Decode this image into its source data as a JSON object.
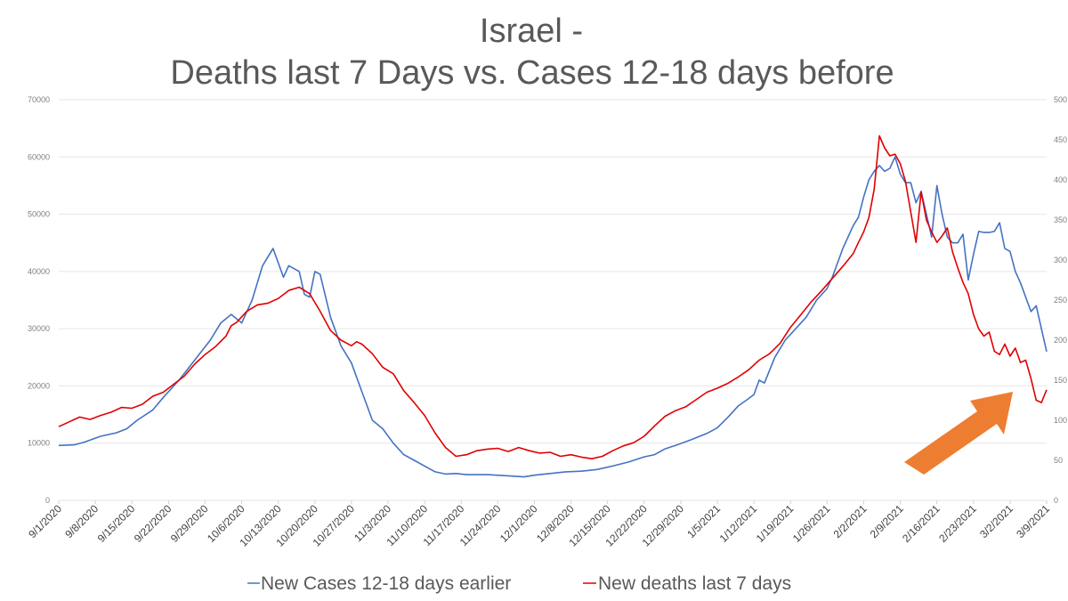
{
  "chart_data": {
    "type": "line",
    "title_line1": "Israel -",
    "title_line2": "Deaths last 7 Days vs. Cases 12-18 days before",
    "left_axis": {
      "min": 0,
      "max": 70000,
      "ticks": [
        "0",
        "10000",
        "20000",
        "30000",
        "40000",
        "50000",
        "60000",
        "70000"
      ]
    },
    "right_axis": {
      "min": 0,
      "max": 500,
      "ticks": [
        "0",
        "50",
        "100",
        "150",
        "200",
        "250",
        "300",
        "350",
        "400",
        "450",
        "500"
      ]
    },
    "x_labels": [
      "9/1/2020",
      "9/8/2020",
      "9/15/2020",
      "9/22/2020",
      "9/29/2020",
      "10/6/2020",
      "10/13/2020",
      "10/20/2020",
      "10/27/2020",
      "11/3/2020",
      "11/10/2020",
      "11/17/2020",
      "11/24/2020",
      "12/1/2020",
      "12/8/2020",
      "12/15/2020",
      "12/22/2020",
      "12/29/2020",
      "1/5/2021",
      "1/12/2021",
      "1/19/2021",
      "1/26/2021",
      "2/2/2021",
      "2/9/2021",
      "2/16/2021",
      "2/23/2021",
      "3/2/2021",
      "3/9/2021"
    ],
    "x_day_range": [
      0,
      189
    ],
    "grid": true,
    "legend_position": "bottom",
    "series": [
      {
        "name": "New Cases 12-18 days earlier",
        "axis": "left",
        "color": "#4472c4",
        "points": [
          [
            0,
            9600
          ],
          [
            3,
            9700
          ],
          [
            5,
            10200
          ],
          [
            8,
            11200
          ],
          [
            11,
            11800
          ],
          [
            13,
            12500
          ],
          [
            15,
            14000
          ],
          [
            18,
            15800
          ],
          [
            20,
            18000
          ],
          [
            23,
            21000
          ],
          [
            26,
            24500
          ],
          [
            29,
            28000
          ],
          [
            31,
            31000
          ],
          [
            33,
            32500
          ],
          [
            35,
            31000
          ],
          [
            37,
            35000
          ],
          [
            39,
            41000
          ],
          [
            41,
            44000
          ],
          [
            43,
            39000
          ],
          [
            44,
            41000
          ],
          [
            46,
            40000
          ],
          [
            47,
            36000
          ],
          [
            48,
            35500
          ],
          [
            49,
            40000
          ],
          [
            50,
            39500
          ],
          [
            52,
            32000
          ],
          [
            54,
            27000
          ],
          [
            56,
            24000
          ],
          [
            58,
            19000
          ],
          [
            60,
            14000
          ],
          [
            62,
            12500
          ],
          [
            64,
            10000
          ],
          [
            66,
            8000
          ],
          [
            68,
            7000
          ],
          [
            70,
            6000
          ],
          [
            72,
            5000
          ],
          [
            74,
            4600
          ],
          [
            76,
            4700
          ],
          [
            78,
            4500
          ],
          [
            82,
            4500
          ],
          [
            86,
            4300
          ],
          [
            89,
            4100
          ],
          [
            91,
            4400
          ],
          [
            94,
            4700
          ],
          [
            97,
            5000
          ],
          [
            100,
            5100
          ],
          [
            103,
            5400
          ],
          [
            106,
            6000
          ],
          [
            109,
            6700
          ],
          [
            112,
            7600
          ],
          [
            114,
            8000
          ],
          [
            116,
            9000
          ],
          [
            118,
            9600
          ],
          [
            121,
            10600
          ],
          [
            124,
            11700
          ],
          [
            126,
            12700
          ],
          [
            128,
            14500
          ],
          [
            130,
            16500
          ],
          [
            132,
            17800
          ],
          [
            133,
            18500
          ],
          [
            134,
            21000
          ],
          [
            135,
            20500
          ],
          [
            137,
            25000
          ],
          [
            139,
            28000
          ],
          [
            141,
            30000
          ],
          [
            143,
            32000
          ],
          [
            145,
            35000
          ],
          [
            147,
            37000
          ],
          [
            148,
            39000
          ],
          [
            150,
            44000
          ],
          [
            152,
            48000
          ],
          [
            153,
            49500
          ],
          [
            154,
            53000
          ],
          [
            155,
            56000
          ],
          [
            156,
            57500
          ],
          [
            157,
            58500
          ],
          [
            158,
            57500
          ],
          [
            159,
            58000
          ],
          [
            160,
            60000
          ],
          [
            161,
            57000
          ],
          [
            162,
            55500
          ],
          [
            163,
            55500
          ],
          [
            164,
            52000
          ],
          [
            165,
            54000
          ],
          [
            166,
            50000
          ],
          [
            167,
            46000
          ],
          [
            168,
            55000
          ],
          [
            169,
            50000
          ],
          [
            170,
            46000
          ],
          [
            171,
            45000
          ],
          [
            172,
            45000
          ],
          [
            173,
            46500
          ],
          [
            174,
            38500
          ],
          [
            175,
            43000
          ],
          [
            176,
            47000
          ],
          [
            177,
            46800
          ],
          [
            178,
            46800
          ],
          [
            179,
            47000
          ],
          [
            180,
            48500
          ],
          [
            181,
            44000
          ],
          [
            182,
            43500
          ],
          [
            183,
            40000
          ],
          [
            184,
            38000
          ],
          [
            186,
            33000
          ],
          [
            187,
            34000
          ],
          [
            188,
            30000
          ],
          [
            189,
            26000
          ]
        ]
      },
      {
        "name": "New deaths last 7 days",
        "axis": "right",
        "color": "#e00000",
        "points": [
          [
            0,
            92
          ],
          [
            2,
            98
          ],
          [
            4,
            104
          ],
          [
            6,
            101
          ],
          [
            8,
            106
          ],
          [
            10,
            110
          ],
          [
            12,
            116
          ],
          [
            14,
            115
          ],
          [
            16,
            120
          ],
          [
            18,
            130
          ],
          [
            20,
            135
          ],
          [
            22,
            145
          ],
          [
            24,
            155
          ],
          [
            26,
            170
          ],
          [
            28,
            182
          ],
          [
            30,
            192
          ],
          [
            32,
            205
          ],
          [
            33,
            218
          ],
          [
            34,
            222
          ],
          [
            36,
            236
          ],
          [
            38,
            244
          ],
          [
            40,
            246
          ],
          [
            42,
            252
          ],
          [
            44,
            262
          ],
          [
            46,
            266
          ],
          [
            48,
            258
          ],
          [
            50,
            236
          ],
          [
            52,
            212
          ],
          [
            54,
            200
          ],
          [
            56,
            193
          ],
          [
            57,
            198
          ],
          [
            58,
            195
          ],
          [
            60,
            183
          ],
          [
            62,
            166
          ],
          [
            64,
            158
          ],
          [
            66,
            137
          ],
          [
            68,
            122
          ],
          [
            70,
            106
          ],
          [
            72,
            84
          ],
          [
            74,
            66
          ],
          [
            76,
            55
          ],
          [
            78,
            57
          ],
          [
            80,
            62
          ],
          [
            82,
            64
          ],
          [
            84,
            65
          ],
          [
            86,
            61
          ],
          [
            88,
            66
          ],
          [
            90,
            62
          ],
          [
            92,
            59
          ],
          [
            94,
            60
          ],
          [
            96,
            55
          ],
          [
            98,
            57
          ],
          [
            100,
            54
          ],
          [
            102,
            52
          ],
          [
            104,
            55
          ],
          [
            106,
            62
          ],
          [
            108,
            68
          ],
          [
            110,
            72
          ],
          [
            112,
            80
          ],
          [
            114,
            93
          ],
          [
            116,
            105
          ],
          [
            118,
            112
          ],
          [
            120,
            117
          ],
          [
            122,
            126
          ],
          [
            124,
            135
          ],
          [
            126,
            140
          ],
          [
            128,
            146
          ],
          [
            130,
            154
          ],
          [
            132,
            163
          ],
          [
            134,
            175
          ],
          [
            136,
            183
          ],
          [
            138,
            196
          ],
          [
            140,
            216
          ],
          [
            142,
            232
          ],
          [
            144,
            248
          ],
          [
            146,
            262
          ],
          [
            148,
            277
          ],
          [
            150,
            292
          ],
          [
            152,
            308
          ],
          [
            153,
            322
          ],
          [
            154,
            335
          ],
          [
            155,
            353
          ],
          [
            156,
            388
          ],
          [
            157,
            455
          ],
          [
            158,
            440
          ],
          [
            159,
            430
          ],
          [
            160,
            432
          ],
          [
            161,
            420
          ],
          [
            162,
            398
          ],
          [
            163,
            360
          ],
          [
            164,
            322
          ],
          [
            165,
            385
          ],
          [
            166,
            350
          ],
          [
            167,
            335
          ],
          [
            168,
            322
          ],
          [
            169,
            330
          ],
          [
            170,
            340
          ],
          [
            171,
            310
          ],
          [
            172,
            290
          ],
          [
            173,
            272
          ],
          [
            174,
            258
          ],
          [
            175,
            232
          ],
          [
            176,
            214
          ],
          [
            177,
            205
          ],
          [
            178,
            210
          ],
          [
            179,
            186
          ],
          [
            180,
            182
          ],
          [
            181,
            195
          ],
          [
            182,
            180
          ],
          [
            183,
            190
          ],
          [
            184,
            172
          ],
          [
            185,
            175
          ],
          [
            186,
            152
          ],
          [
            187,
            125
          ],
          [
            188,
            122
          ],
          [
            189,
            138
          ]
        ]
      }
    ]
  },
  "colors": {
    "cases_line": "#4472c4",
    "deaths_line": "#e00000",
    "arrow": "#ed7d31"
  },
  "annotation_icon": "orange-arrow-icon"
}
